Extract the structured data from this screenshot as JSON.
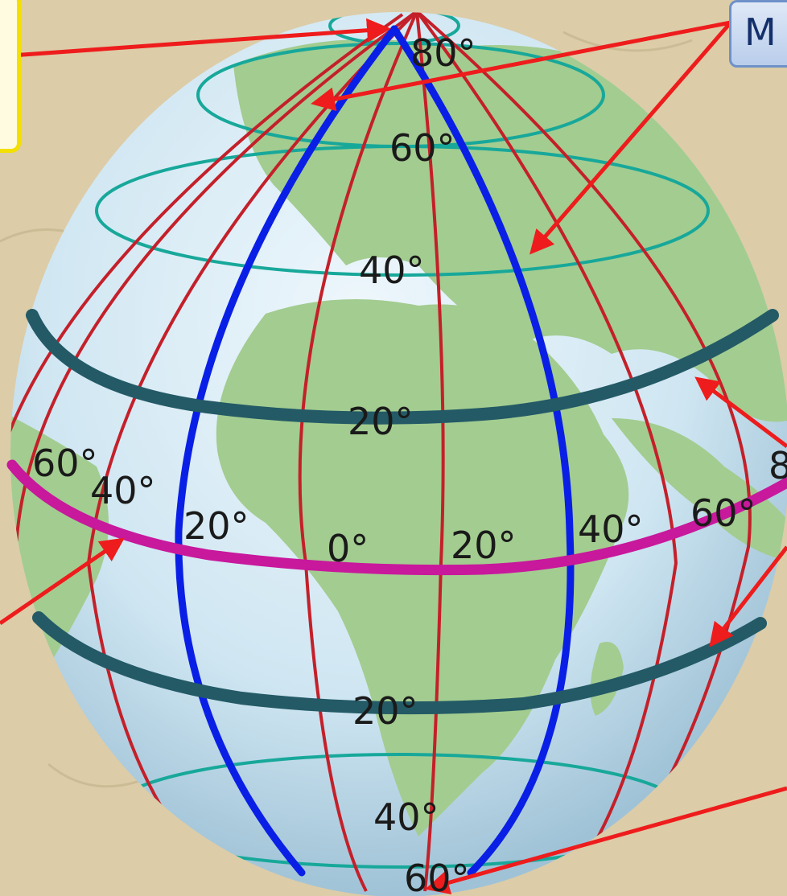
{
  "callout_text": "M",
  "edge_text": "8",
  "latitude_labels": {
    "n80": "80°",
    "n60": "60°",
    "n40": "40°",
    "n20": "20°",
    "s20": "20°",
    "s40": "40°",
    "s60": "60°"
  },
  "longitude_labels": {
    "w60": "60°",
    "w40": "40°",
    "w20": "20°",
    "zero": "0°",
    "e20": "20°",
    "e40": "40°",
    "e60": "60°"
  },
  "colors": {
    "equator": "#c8189c",
    "tropics": "#235a66",
    "parallels": "#17a89a",
    "meridians": "#c4202a",
    "highlighted_meridians": "#0a1fe6",
    "arrows": "#ee1c1c",
    "ocean": "#cde6f2",
    "land": "#9fc98c"
  }
}
